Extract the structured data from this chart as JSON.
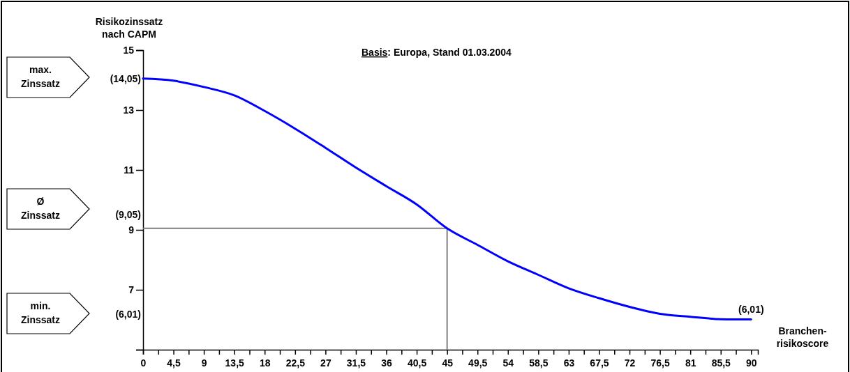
{
  "chart_data": {
    "type": "line",
    "title": "Basis: Europa, Stand 01.03.2004",
    "ylabel": "Risikozinssatz\nnach CAPM",
    "xlabel": "Branchen-\nrisikoscore",
    "x": [
      0,
      4.5,
      9,
      13.5,
      18,
      22.5,
      27,
      31.5,
      36,
      40.5,
      45,
      49.5,
      54,
      58.5,
      63,
      67.5,
      72,
      76.5,
      81,
      85.5,
      90
    ],
    "series": [
      {
        "color": "#0000ff",
        "values": [
          14.05,
          13.98,
          13.77,
          13.49,
          12.97,
          12.38,
          11.74,
          11.08,
          10.46,
          9.85,
          9.05,
          8.5,
          7.95,
          7.5,
          7.05,
          6.72,
          6.43,
          6.2,
          6.1,
          6.02,
          6.01
        ]
      }
    ],
    "xlim": [
      0,
      91
    ],
    "xticks": [
      0,
      {
        "value": 2.25,
        "label": null
      },
      {
        "value": 4.5,
        "label": "4,5"
      },
      {
        "value": 6.75,
        "label": null
      },
      9,
      {
        "value": 11.25,
        "label": null
      },
      {
        "value": 13.5,
        "label": "13,5"
      },
      {
        "value": 15.75,
        "label": null
      },
      18,
      {
        "value": 20.25,
        "label": null
      },
      {
        "value": 22.5,
        "label": "22,5"
      },
      {
        "value": 24.75,
        "label": null
      },
      27,
      {
        "value": 29.25,
        "label": null
      },
      {
        "value": 31.5,
        "label": "31,5"
      },
      {
        "value": 33.75,
        "label": null
      },
      36,
      {
        "value": 38.25,
        "label": null
      },
      {
        "value": 40.5,
        "label": "40,5"
      },
      {
        "value": 42.75,
        "label": null
      },
      45,
      {
        "value": 47.25,
        "label": null
      },
      {
        "value": 49.5,
        "label": "49,5"
      },
      {
        "value": 51.75,
        "label": null
      },
      54,
      {
        "value": 56.25,
        "label": null
      },
      {
        "value": 58.5,
        "label": "58,5"
      },
      {
        "value": 60.75,
        "label": null
      },
      63,
      {
        "value": 65.25,
        "label": null
      },
      {
        "value": 67.5,
        "label": "67,5"
      },
      {
        "value": 69.75,
        "label": null
      },
      72,
      {
        "value": 74.25,
        "label": null
      },
      {
        "value": 76.5,
        "label": "76,5"
      },
      {
        "value": 78.75,
        "label": null
      },
      81,
      {
        "value": 83.25,
        "label": null
      },
      {
        "value": 85.5,
        "label": "85,5"
      },
      {
        "value": 87.75,
        "label": null
      },
      90
    ],
    "ylim": [
      5,
      15
    ],
    "yticks": [
      {
        "value": 5,
        "label": null
      },
      7,
      9,
      11,
      13,
      15
    ],
    "ref_lines": [
      {
        "axis": "x",
        "value": 45,
        "color": "#808080"
      },
      {
        "axis": "y",
        "value": 9.05,
        "color": "#808080"
      }
    ],
    "annotations": [
      "max.\nZinssatz",
      "Ø\nZinssatz",
      "min.\nZinssatz",
      "(9,05)",
      "(6,01)",
      {
        "text": "(14,05)",
        "x": 0,
        "y": 14.05
      },
      {
        "text": "(6,01)",
        "x": 90,
        "y": 6.01
      }
    ]
  }
}
